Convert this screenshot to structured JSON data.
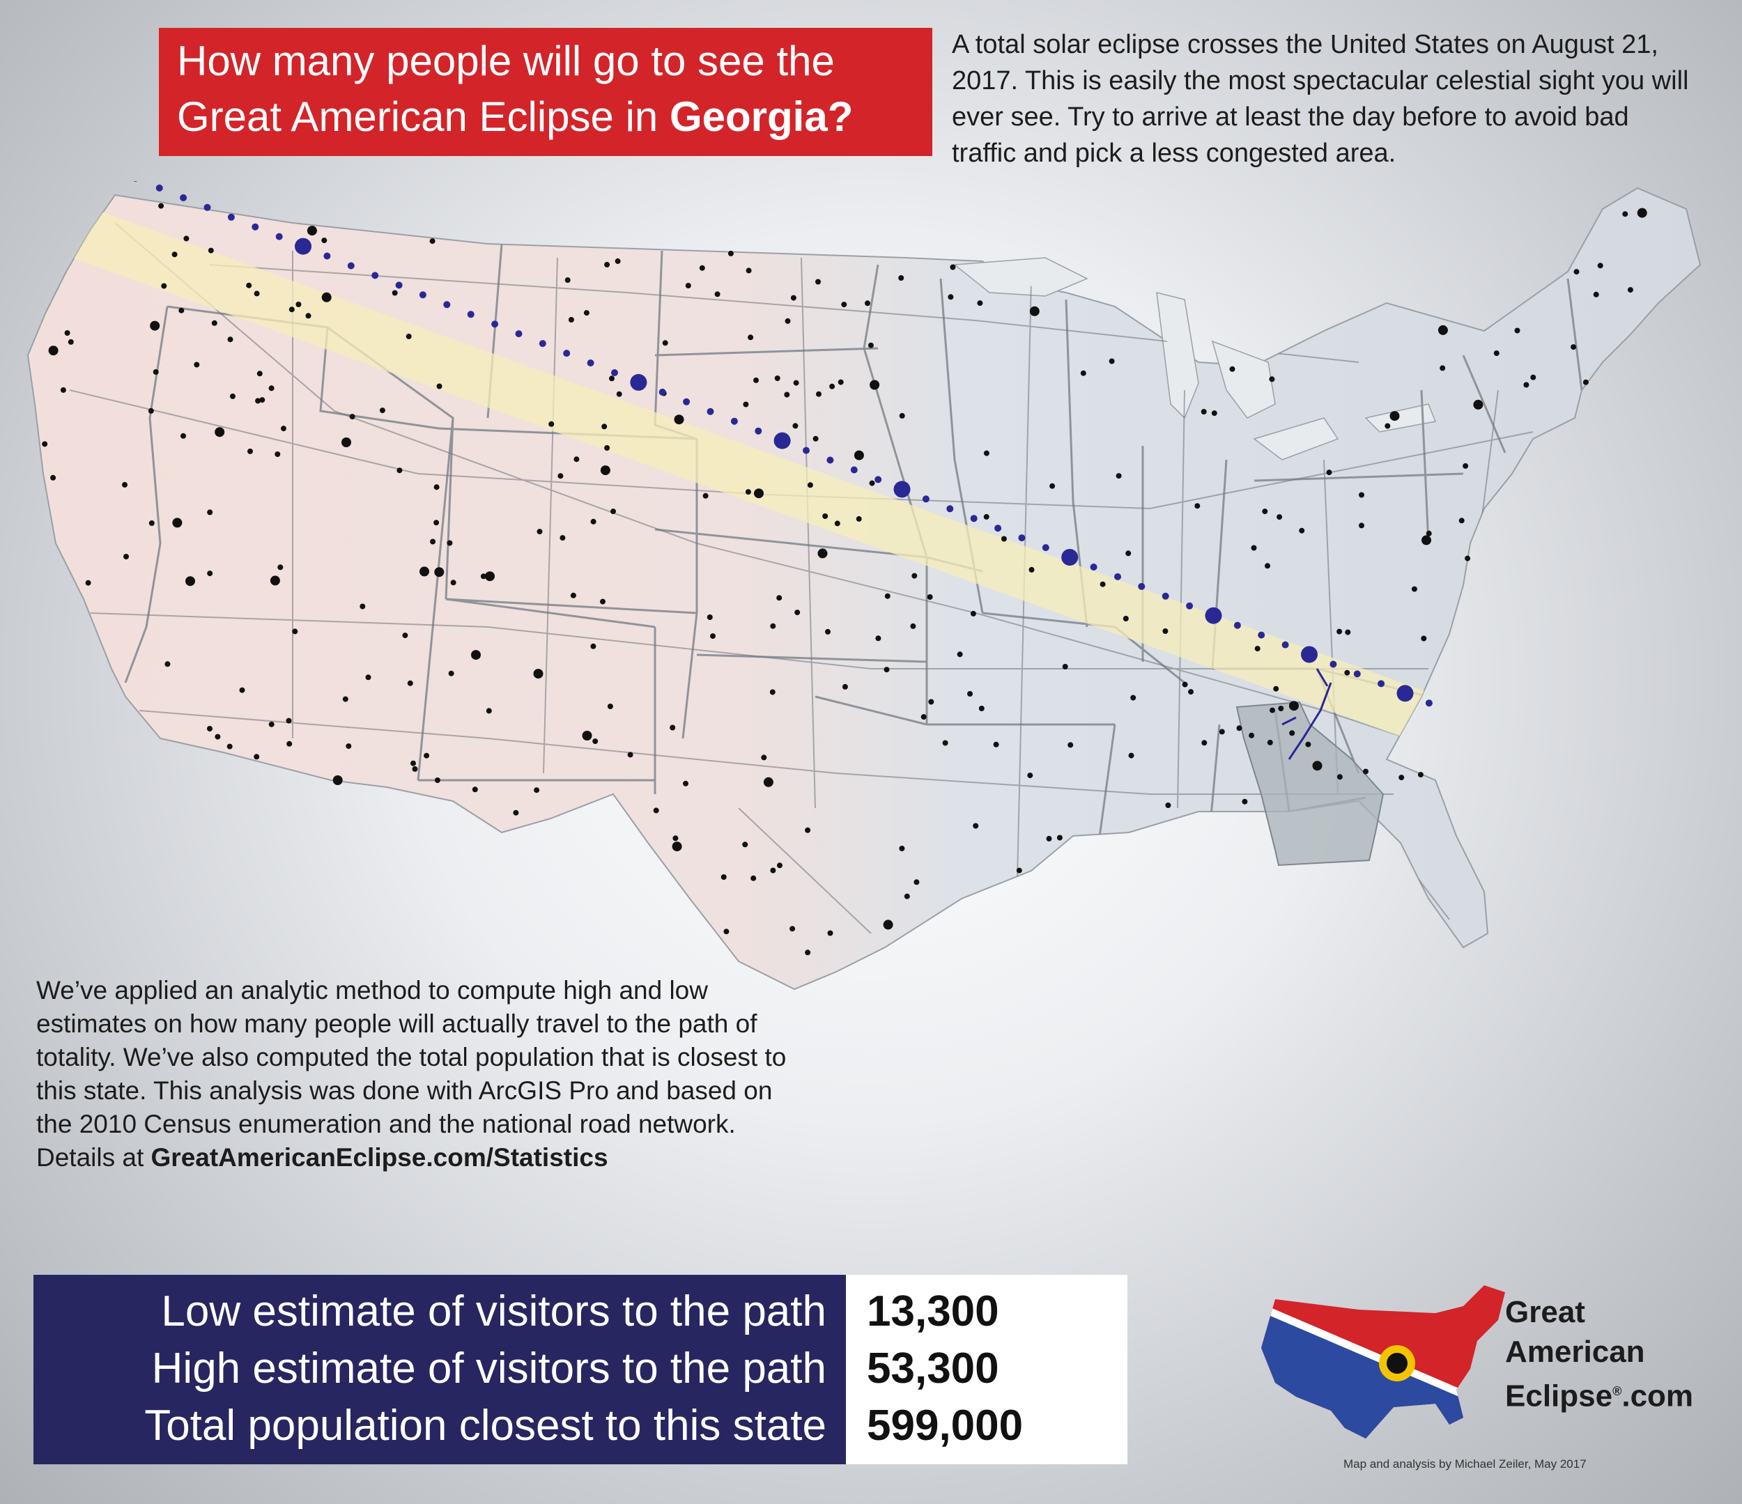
{
  "title": {
    "line1": "How many people will go to see the",
    "line2_prefix": "Great American Eclipse in ",
    "state": "Georgia?"
  },
  "intro_text": "A total solar eclipse crosses the United States on August 21, 2017. This is easily the most spectacular celestial sight you will ever see. Try to arrive at least the day before to avoid bad traffic and pick a less congested area.",
  "method": {
    "text": "We’ve applied an analytic method to compute high and low estimates on how many people will actually travel to the path of totality. We’ve also computed the total population that is closest to this state. This analysis was done with ArcGIS Pro and based on the 2010 Census enumeration and the national road network. Details at ",
    "link": "GreatAmericanEclipse.com/Statistics"
  },
  "stats": [
    {
      "label": "Low estimate of visitors to the path",
      "value": "13,300"
    },
    {
      "label": "High estimate of visitors to the path",
      "value": "53,300"
    },
    {
      "label": "Total population closest to this state",
      "value": "599,000"
    }
  ],
  "logo": {
    "line1": "Great",
    "line2": "American",
    "line3": "Eclipse",
    "reg": "®",
    "line3_suffix": ".com"
  },
  "credit": "Map and analysis by Michael Zeiler, May 2017",
  "colors": {
    "title_bg": "#d3242a",
    "stats_bg": "#272660",
    "path_band": "#f5edb9",
    "path_cities": "#2a2895",
    "highlight_state": "#a7b1b6",
    "west_land": "#f2dedb",
    "east_land": "#d8dde4"
  }
}
